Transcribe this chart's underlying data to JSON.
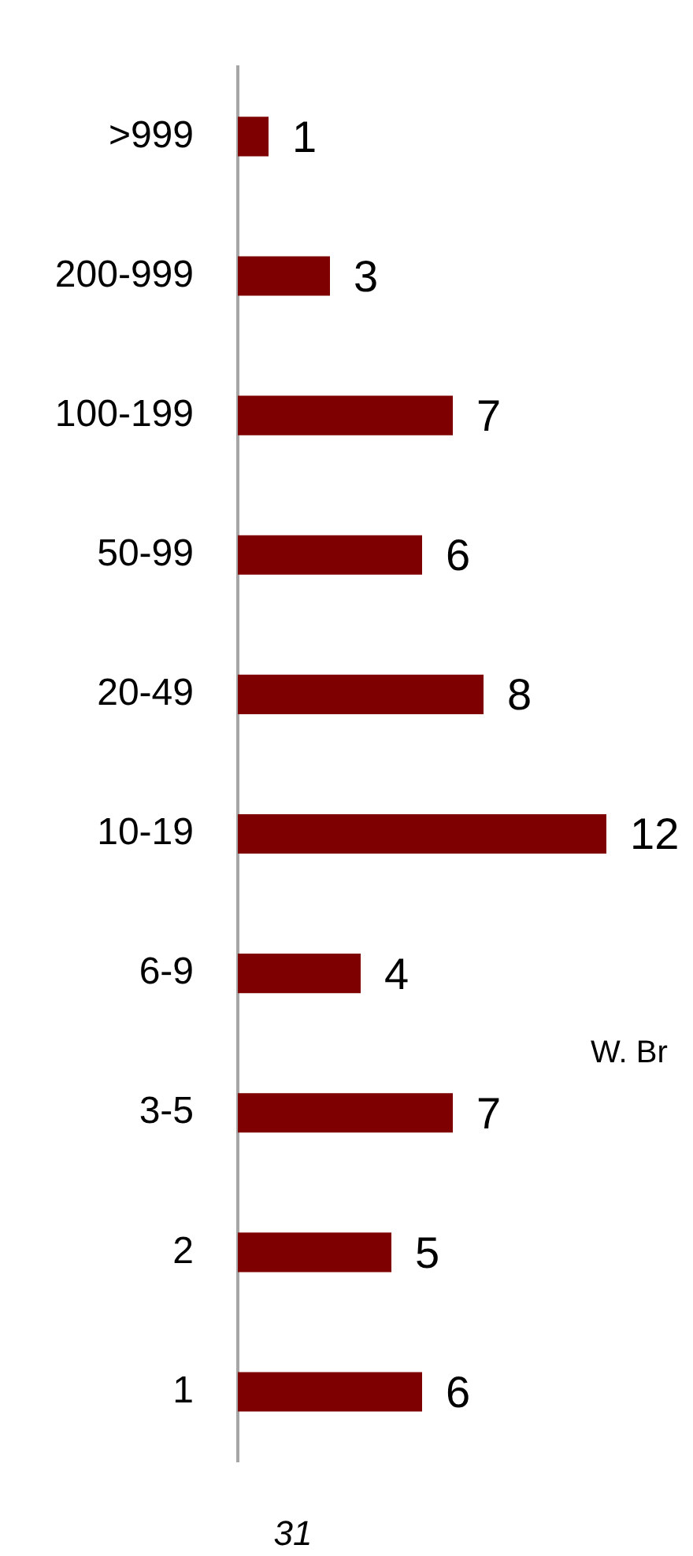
{
  "chart_data": {
    "type": "bar",
    "orientation": "horizontal",
    "categories": [
      ">999",
      "200-999",
      "100-199",
      "50-99",
      "20-49",
      "10-19",
      "6-9",
      "3-5",
      "2",
      "1"
    ],
    "values": [
      1,
      3,
      7,
      6,
      8,
      12,
      4,
      7,
      5,
      6
    ],
    "color": "#7f0000",
    "tick_labels": "y",
    "data_labels": true,
    "annotations": [
      "W. Br",
      "31"
    ]
  }
}
